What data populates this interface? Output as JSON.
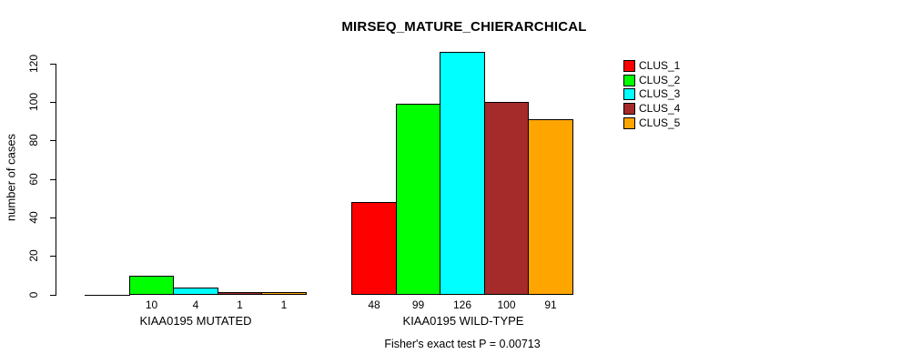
{
  "chart_data": {
    "type": "bar",
    "title": "MIRSEQ_MATURE_CHIERARCHICAL",
    "xlabel": "",
    "ylabel": "number of cases",
    "yticks": [
      0,
      20,
      40,
      60,
      80,
      100,
      120
    ],
    "ylim": [
      0,
      126
    ],
    "grid": false,
    "legend_position": "topright",
    "series_names": [
      "CLUS_1",
      "CLUS_2",
      "CLUS_3",
      "CLUS_4",
      "CLUS_5"
    ],
    "series_colors": [
      "#FF0000",
      "#00FF00",
      "#00FFFF",
      "#A52A2A",
      "#FFA500"
    ],
    "groups": [
      {
        "label": "KIAA0195 MUTATED",
        "values": [
          0,
          10,
          4,
          1,
          1
        ]
      },
      {
        "label": "KIAA0195 WILD-TYPE",
        "values": [
          48,
          99,
          126,
          100,
          91
        ]
      }
    ],
    "bar_value_labels": [
      [
        "",
        "10",
        "4",
        "1",
        "1"
      ],
      [
        "48",
        "99",
        "126",
        "100",
        "91"
      ]
    ],
    "annotation": "Fisher's exact test P = 0.00713"
  }
}
